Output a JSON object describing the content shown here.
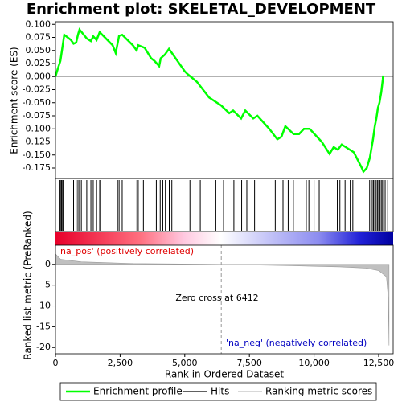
{
  "chart_data": [
    {
      "type": "line",
      "title": "Enrichment plot: SKELETAL_DEVELOPMENT",
      "ylabel": "Enrichment score (ES)",
      "xlim": [
        0,
        13060
      ],
      "ylim": [
        -0.195,
        0.105
      ],
      "yticks": [
        {
          "value": 0.1,
          "label": "0.100"
        },
        {
          "value": 0.075,
          "label": "0.075"
        },
        {
          "value": 0.05,
          "label": "0.050"
        },
        {
          "value": 0.025,
          "label": "0.025"
        },
        {
          "value": 0,
          "label": "0.000"
        },
        {
          "value": -0.025,
          "label": "-0.025"
        },
        {
          "value": -0.05,
          "label": "-0.050"
        },
        {
          "value": -0.075,
          "label": "-0.075"
        },
        {
          "value": -0.1,
          "label": "-0.100"
        },
        {
          "value": -0.125,
          "label": "-0.125"
        },
        {
          "value": -0.15,
          "label": "-0.150"
        },
        {
          "value": -0.175,
          "label": "-0.175"
        }
      ],
      "x": [
        0,
        90,
        190,
        280,
        340,
        600,
        700,
        800,
        870,
        930,
        1210,
        1370,
        1460,
        1590,
        1710,
        2210,
        2330,
        2460,
        2580,
        2990,
        3140,
        3200,
        3450,
        3700,
        3830,
        4010,
        4070,
        4230,
        4390,
        5000,
        5100,
        5470,
        5940,
        6400,
        6720,
        6870,
        7180,
        7340,
        7650,
        7810,
        8270,
        8580,
        8740,
        8890,
        9210,
        9420,
        9610,
        9830,
        10300,
        10600,
        10760,
        10920,
        11070,
        11540,
        11850,
        11910,
        12040,
        12160,
        12280,
        12350,
        12410,
        12470,
        12530,
        12600,
        12660,
        12670
      ],
      "series": [
        {
          "name": "Enrichment profile",
          "color": "#00ff00",
          "values": [
            0,
            0.015,
            0.03,
            0.06,
            0.08,
            0.07,
            0.063,
            0.065,
            0.08,
            0.09,
            0.073,
            0.068,
            0.077,
            0.07,
            0.085,
            0.06,
            0.045,
            0.078,
            0.08,
            0.06,
            0.05,
            0.06,
            0.055,
            0.035,
            0.03,
            0.02,
            0.035,
            0.042,
            0.053,
            0.01,
            0.005,
            -0.01,
            -0.04,
            -0.055,
            -0.07,
            -0.065,
            -0.08,
            -0.065,
            -0.08,
            -0.075,
            -0.1,
            -0.12,
            -0.115,
            -0.095,
            -0.11,
            -0.11,
            -0.1,
            -0.1,
            -0.125,
            -0.148,
            -0.135,
            -0.14,
            -0.13,
            -0.145,
            -0.175,
            -0.182,
            -0.175,
            -0.155,
            -0.12,
            -0.095,
            -0.08,
            -0.06,
            -0.05,
            -0.03,
            -0.005,
            0.002
          ]
        }
      ]
    },
    {
      "type": "hits",
      "xlim": [
        0,
        13060
      ],
      "series": [
        {
          "name": "Hits",
          "color": "#000000",
          "x": [
            150,
            180,
            220,
            250,
            290,
            320,
            700,
            800,
            870,
            930,
            1000,
            1210,
            1370,
            1460,
            1590,
            1710,
            1750,
            2400,
            2460,
            2580,
            3150,
            3200,
            3400,
            3900,
            4050,
            4150,
            4250,
            4400,
            4500,
            5200,
            5600,
            6200,
            6500,
            6900,
            7200,
            7400,
            7700,
            8100,
            8500,
            8800,
            9000,
            9200,
            9700,
            9800,
            10000,
            10200,
            10900,
            11000,
            11200,
            11400,
            11500,
            12150,
            12250,
            12300,
            12350,
            12400,
            12450,
            12500,
            12550,
            12600,
            12650,
            12700,
            12750,
            12850
          ]
        }
      ]
    },
    {
      "type": "area",
      "xlabel": "Rank in Ordered Dataset",
      "ylabel": "Ranked list metric (PreRanked)",
      "xlim": [
        0,
        13060
      ],
      "ylim": [
        -21.5,
        4.6
      ],
      "xticks": [
        0,
        {
          "value": 2500,
          "label": "2,500"
        },
        {
          "value": 5000,
          "label": "5,000"
        },
        {
          "value": 7500,
          "label": "7,500"
        },
        {
          "value": 10000,
          "label": "10,000"
        },
        {
          "value": 12500,
          "label": "12,500"
        }
      ],
      "yticks": [
        0,
        -5,
        -10,
        -15,
        -20
      ],
      "x": [
        0,
        200,
        1000,
        3000,
        6412,
        9000,
        11000,
        12000,
        12500,
        12800,
        12870,
        12900
      ],
      "series": [
        {
          "name": "Ranking metric scores",
          "color": "#c0c0c0",
          "values": [
            2.5,
            1.2,
            0.6,
            0.2,
            0,
            -0.3,
            -0.6,
            -0.9,
            -1.5,
            -3,
            -8,
            -19.5
          ]
        }
      ],
      "zero_cross": 6412,
      "annotations": [
        "'na_pos' (positively correlated)",
        "Zero cross at 6412",
        "'na_neg' (negatively correlated)"
      ]
    }
  ]
}
